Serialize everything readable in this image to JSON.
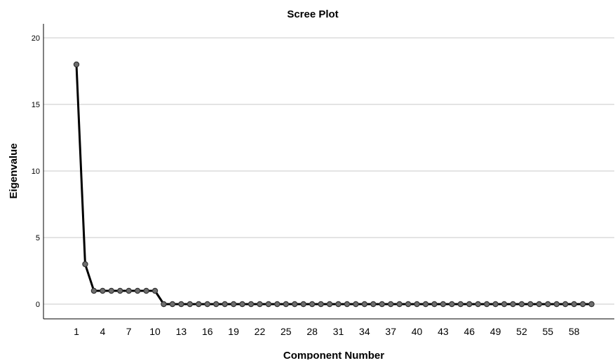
{
  "chart_data": {
    "type": "line",
    "title": "Scree Plot",
    "xlabel": "Component Number",
    "ylabel": "Eigenvalue",
    "ylim": [
      -1,
      21
    ],
    "yticks": [
      0,
      5,
      10,
      15,
      20
    ],
    "xlim": [
      1,
      60
    ],
    "xticks": [
      1,
      4,
      7,
      10,
      13,
      16,
      19,
      22,
      25,
      28,
      31,
      34,
      37,
      40,
      43,
      46,
      49,
      52,
      55,
      58
    ],
    "grid": "horizontal",
    "legend": "none",
    "colors": {
      "line": "#000000",
      "marker_fill": "#6e6e6e",
      "marker_stroke": "#333333",
      "grid": "#c8c8c8"
    },
    "series": [
      {
        "x": [
          1,
          2,
          3,
          4,
          5,
          6,
          7,
          8,
          9,
          10,
          11,
          12,
          13,
          14,
          15,
          16,
          17,
          18,
          19,
          20,
          21,
          22,
          23,
          24,
          25,
          26,
          27,
          28,
          29,
          30,
          31,
          32,
          33,
          34,
          35,
          36,
          37,
          38,
          39,
          40,
          41,
          42,
          43,
          44,
          45,
          46,
          47,
          48,
          49,
          50,
          51,
          52,
          53,
          54,
          55,
          56,
          57,
          58,
          59,
          60
        ],
        "values": [
          18,
          3,
          1,
          1,
          1,
          1,
          1,
          1,
          1,
          1,
          0,
          0,
          0,
          0,
          0,
          0,
          0,
          0,
          0,
          0,
          0,
          0,
          0,
          0,
          0,
          0,
          0,
          0,
          0,
          0,
          0,
          0,
          0,
          0,
          0,
          0,
          0,
          0,
          0,
          0,
          0,
          0,
          0,
          0,
          0,
          0,
          0,
          0,
          0,
          0,
          0,
          0,
          0,
          0,
          0,
          0,
          0,
          0,
          0,
          0
        ]
      }
    ]
  }
}
